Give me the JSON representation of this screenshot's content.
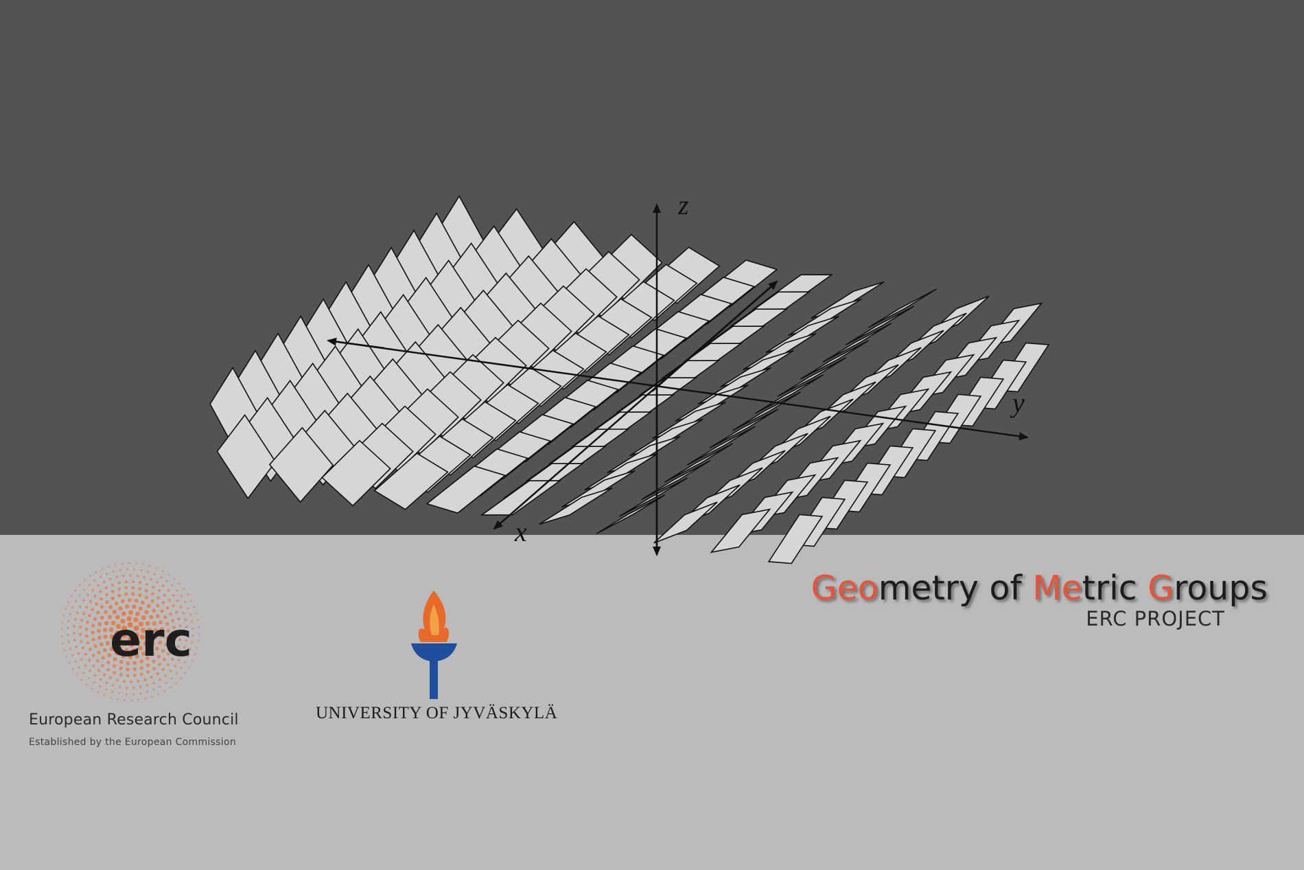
{
  "figure": {
    "axes": {
      "x": "x",
      "y": "y",
      "z": "z"
    },
    "tile_fill": "#d6d6d6",
    "tile_stroke": "#111111"
  },
  "erc": {
    "logo_text": "erc",
    "name": "European Research Council",
    "tagline": "Established by the European Commission",
    "accent": "#e8743a"
  },
  "university": {
    "name": "UNIVERSITY OF JYVÄSKYLÄ",
    "flame_color": "#e86a2a",
    "torch_color": "#1f4f9c"
  },
  "project": {
    "title_parts": [
      {
        "text": "Geo",
        "highlight": true
      },
      {
        "text": "metry of ",
        "highlight": false
      },
      {
        "text": "Me",
        "highlight": true
      },
      {
        "text": "tric ",
        "highlight": false
      },
      {
        "text": "G",
        "highlight": true
      },
      {
        "text": "roups",
        "highlight": false
      }
    ],
    "subtitle": "ERC PROJECT",
    "accent": "#e8543a"
  }
}
